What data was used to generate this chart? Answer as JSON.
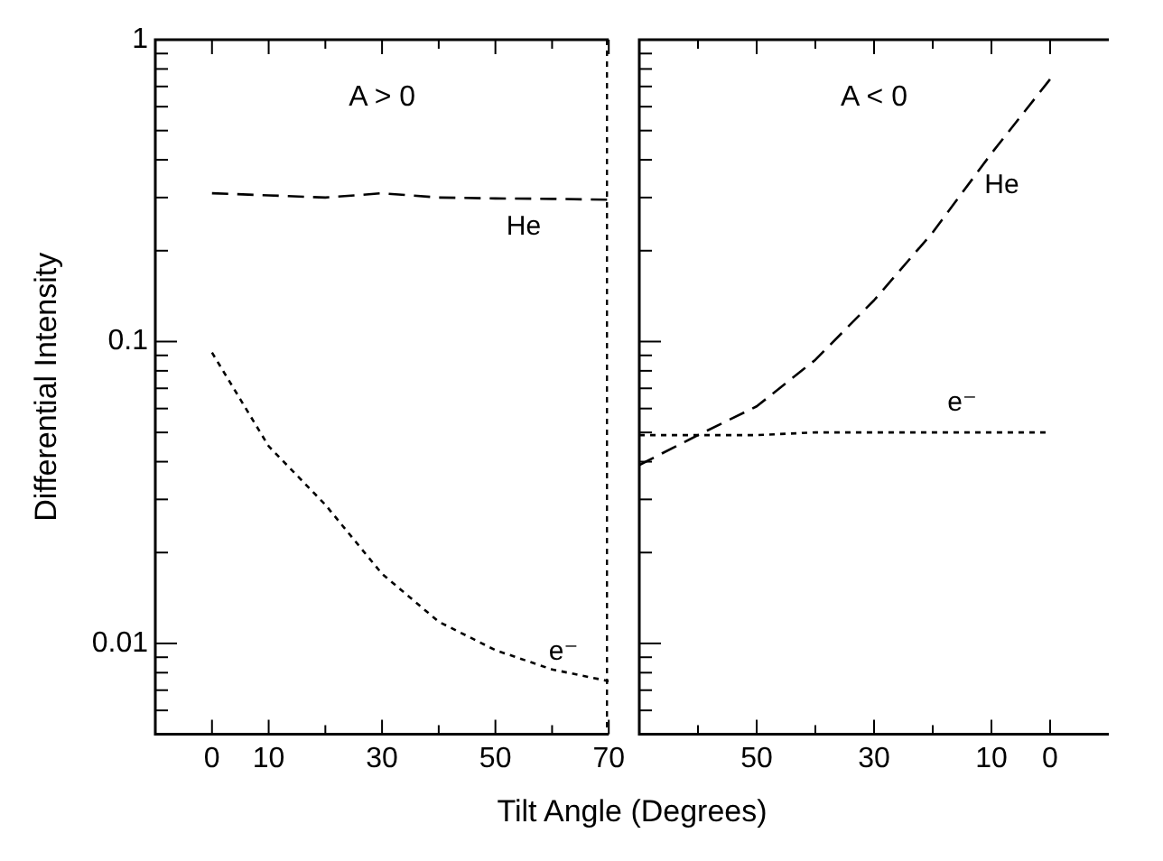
{
  "chart_data": [
    {
      "type": "line",
      "xlabel": "Tilt Angle (Degrees)",
      "ylabel": "Differential Intensity",
      "log": "y",
      "xlim": [
        -10,
        70
      ],
      "xticks": [
        0,
        10,
        {
          "value": 20,
          "label": null
        },
        30,
        {
          "value": 40,
          "label": null
        },
        50,
        {
          "value": 60,
          "label": null
        },
        70
      ],
      "ylim": [
        0.005,
        1
      ],
      "yticks": [
        {
          "value": 0.006,
          "label": null
        },
        {
          "value": 0.007,
          "label": null
        },
        {
          "value": 0.008,
          "label": null
        },
        {
          "value": 0.009,
          "label": null
        },
        0.01,
        {
          "value": 0.02,
          "label": null
        },
        {
          "value": 0.03,
          "label": null
        },
        {
          "value": 0.04,
          "label": null
        },
        {
          "value": 0.05,
          "label": null
        },
        {
          "value": 0.06,
          "label": null
        },
        {
          "value": 0.07,
          "label": null
        },
        {
          "value": 0.08,
          "label": null
        },
        {
          "value": 0.09,
          "label": null
        },
        0.1,
        {
          "value": 0.2,
          "label": null
        },
        {
          "value": 0.3,
          "label": null
        },
        {
          "value": 0.4,
          "label": null
        },
        {
          "value": 0.5,
          "label": null
        },
        {
          "value": 0.6,
          "label": null
        },
        {
          "value": 0.7,
          "label": null
        },
        {
          "value": 0.8,
          "label": null
        },
        {
          "value": 0.9,
          "label": null
        },
        1
      ],
      "ref_lines": [
        {
          "axis": "x",
          "value": 70,
          "color": "#000000",
          "line_style": "dotted"
        }
      ],
      "annotations": [
        "A > 0"
      ],
      "marker": "none",
      "series": [
        {
          "name": "He",
          "color": "#000000",
          "line_style": "dashed",
          "x": [
            0,
            10,
            20,
            30,
            40,
            50,
            60,
            70
          ],
          "values": [
            0.31,
            0.305,
            0.3,
            0.31,
            0.3,
            0.298,
            0.297,
            0.295
          ]
        },
        {
          "name": "e⁻",
          "color": "#000000",
          "line_style": "dotted",
          "x": [
            0,
            10,
            20,
            30,
            40,
            50,
            60,
            70
          ],
          "values": [
            0.092,
            0.045,
            0.0288,
            0.017,
            0.0118,
            0.0095,
            0.0082,
            0.0075
          ]
        }
      ]
    },
    {
      "type": "line",
      "log": "y",
      "tick_labels": "x",
      "xlim": [
        70,
        -10
      ],
      "xticks": [
        {
          "value": 70,
          "label": null
        },
        {
          "value": 60,
          "label": null
        },
        50,
        {
          "value": 40,
          "label": null
        },
        30,
        {
          "value": 20,
          "label": null
        },
        10,
        0
      ],
      "ylim": [
        0.005,
        1
      ],
      "yticks": [
        {
          "value": 0.006,
          "label": null
        },
        {
          "value": 0.007,
          "label": null
        },
        {
          "value": 0.008,
          "label": null
        },
        {
          "value": 0.009,
          "label": null
        },
        0.01,
        {
          "value": 0.02,
          "label": null
        },
        {
          "value": 0.03,
          "label": null
        },
        {
          "value": 0.04,
          "label": null
        },
        {
          "value": 0.05,
          "label": null
        },
        {
          "value": 0.06,
          "label": null
        },
        {
          "value": 0.07,
          "label": null
        },
        {
          "value": 0.08,
          "label": null
        },
        {
          "value": 0.09,
          "label": null
        },
        0.1,
        {
          "value": 0.2,
          "label": null
        },
        {
          "value": 0.3,
          "label": null
        },
        {
          "value": 0.4,
          "label": null
        },
        {
          "value": 0.5,
          "label": null
        },
        {
          "value": 0.6,
          "label": null
        },
        {
          "value": 0.7,
          "label": null
        },
        {
          "value": 0.8,
          "label": null
        },
        {
          "value": 0.9,
          "label": null
        },
        1
      ],
      "annotations": [
        "A < 0"
      ],
      "marker": "none",
      "series": [
        {
          "name": "He",
          "color": "#000000",
          "line_style": "dashed",
          "x": [
            70,
            60,
            50,
            40,
            30,
            20,
            10,
            0
          ],
          "values": [
            0.039,
            0.049,
            0.061,
            0.087,
            0.137,
            0.23,
            0.42,
            0.74
          ]
        },
        {
          "name": "e⁻",
          "color": "#000000",
          "line_style": "dotted",
          "x": [
            70,
            60,
            50,
            40,
            30,
            20,
            10,
            0
          ],
          "values": [
            0.049,
            0.049,
            0.049,
            0.05,
            0.05,
            0.05,
            0.05,
            0.05
          ]
        }
      ]
    }
  ]
}
